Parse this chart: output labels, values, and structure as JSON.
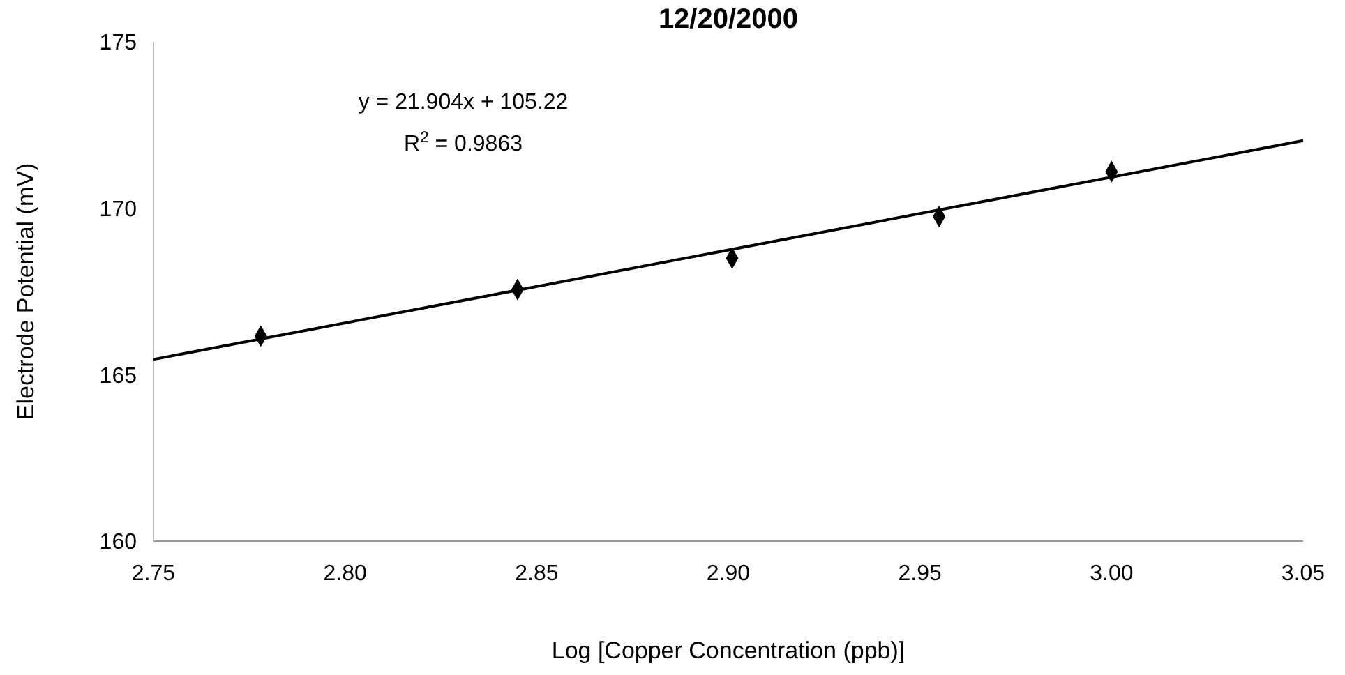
{
  "chart_data": {
    "type": "scatter",
    "title": "12/20/2000",
    "xlabel": "Log [Copper Concentration (ppb)]",
    "ylabel": "Electrode Potential (mV)",
    "xlim": [
      2.75,
      3.05
    ],
    "ylim": [
      160,
      175
    ],
    "xticks": [
      2.75,
      {
        "value": 2.8,
        "label": "2.80"
      },
      2.85,
      {
        "value": 2.9,
        "label": "2.90"
      },
      2.95,
      {
        "value": 3,
        "label": "3.00"
      },
      3.05
    ],
    "yticks": [
      160,
      165,
      170,
      175
    ],
    "series": [
      {
        "color": "#000000",
        "marker": "diamond",
        "x": [
          2.778,
          2.845,
          2.901,
          2.955,
          3.0
        ],
        "values": [
          166.16,
          167.56,
          168.5,
          169.75,
          171.1
        ]
      },
      {
        "type": "line",
        "color": "#000000",
        "x": [
          2.75,
          3.05
        ],
        "values": [
          165.46,
          172.03
        ]
      }
    ],
    "annotations": [
      "y = 21.904x + 105.22",
      "R$^{2}$ = 0.9863"
    ],
    "grid": false
  }
}
